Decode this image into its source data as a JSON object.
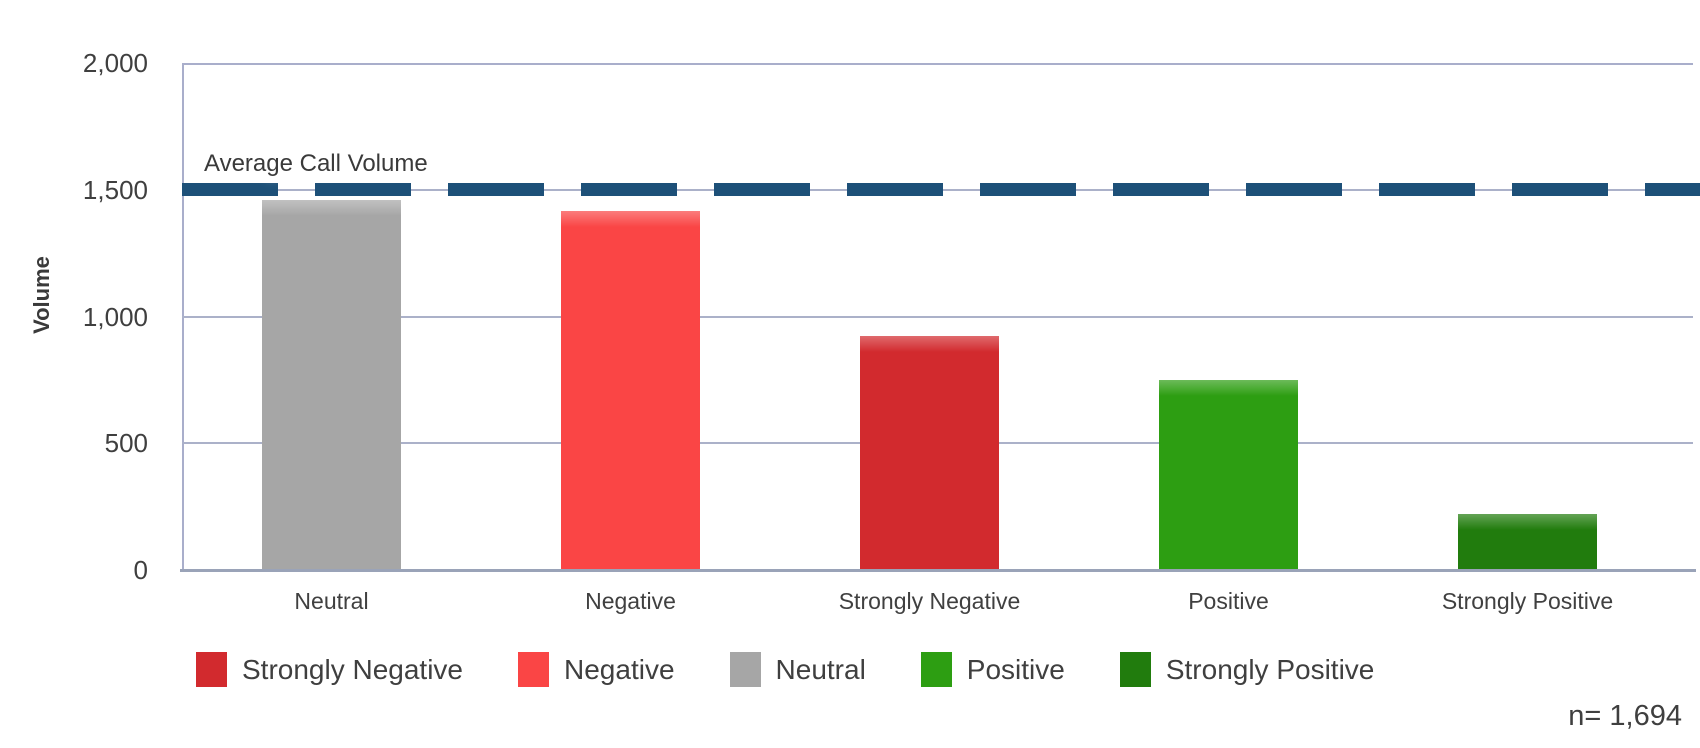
{
  "chart_data": {
    "type": "bar",
    "title": "",
    "categories": [
      "Neutral",
      "Negative",
      "Strongly Negative",
      "Positive",
      "Strongly Positive"
    ],
    "values": [
      1460,
      1415,
      925,
      750,
      220
    ],
    "bar_colors": [
      "#a6a6a6",
      "#fa4545",
      "#d22a2e",
      "#2d9e12",
      "#217c0d"
    ],
    "xlabel": "",
    "ylabel": "Volume",
    "ylim": [
      0,
      2000
    ],
    "ytick_values": [
      0,
      500,
      1000,
      1500,
      2000
    ],
    "ytick_labels": [
      "0",
      "500",
      "1,000",
      "1,500",
      "2,000"
    ],
    "grid": "horizontal",
    "reference_line": {
      "label": "Average Call Volume",
      "value": 1500,
      "style": "dashed",
      "color": "#1d5078"
    },
    "legend_position": "bottom",
    "legend": [
      {
        "label": "Strongly Negative",
        "color": "#d22a2e"
      },
      {
        "label": "Negative",
        "color": "#fa4545"
      },
      {
        "label": "Neutral",
        "color": "#a6a6a6"
      },
      {
        "label": "Positive",
        "color": "#2d9e12"
      },
      {
        "label": "Strongly Positive",
        "color": "#217c0d"
      }
    ],
    "sample_size_label": "n= 1,694"
  },
  "colors": {
    "background": "#ffffff",
    "axis_border": "#a9aecb",
    "x_axis_line": "#9aa3b8",
    "gridline": "#abb1c9",
    "text": "#3f3f3f",
    "reference_line": "#1d5078"
  }
}
